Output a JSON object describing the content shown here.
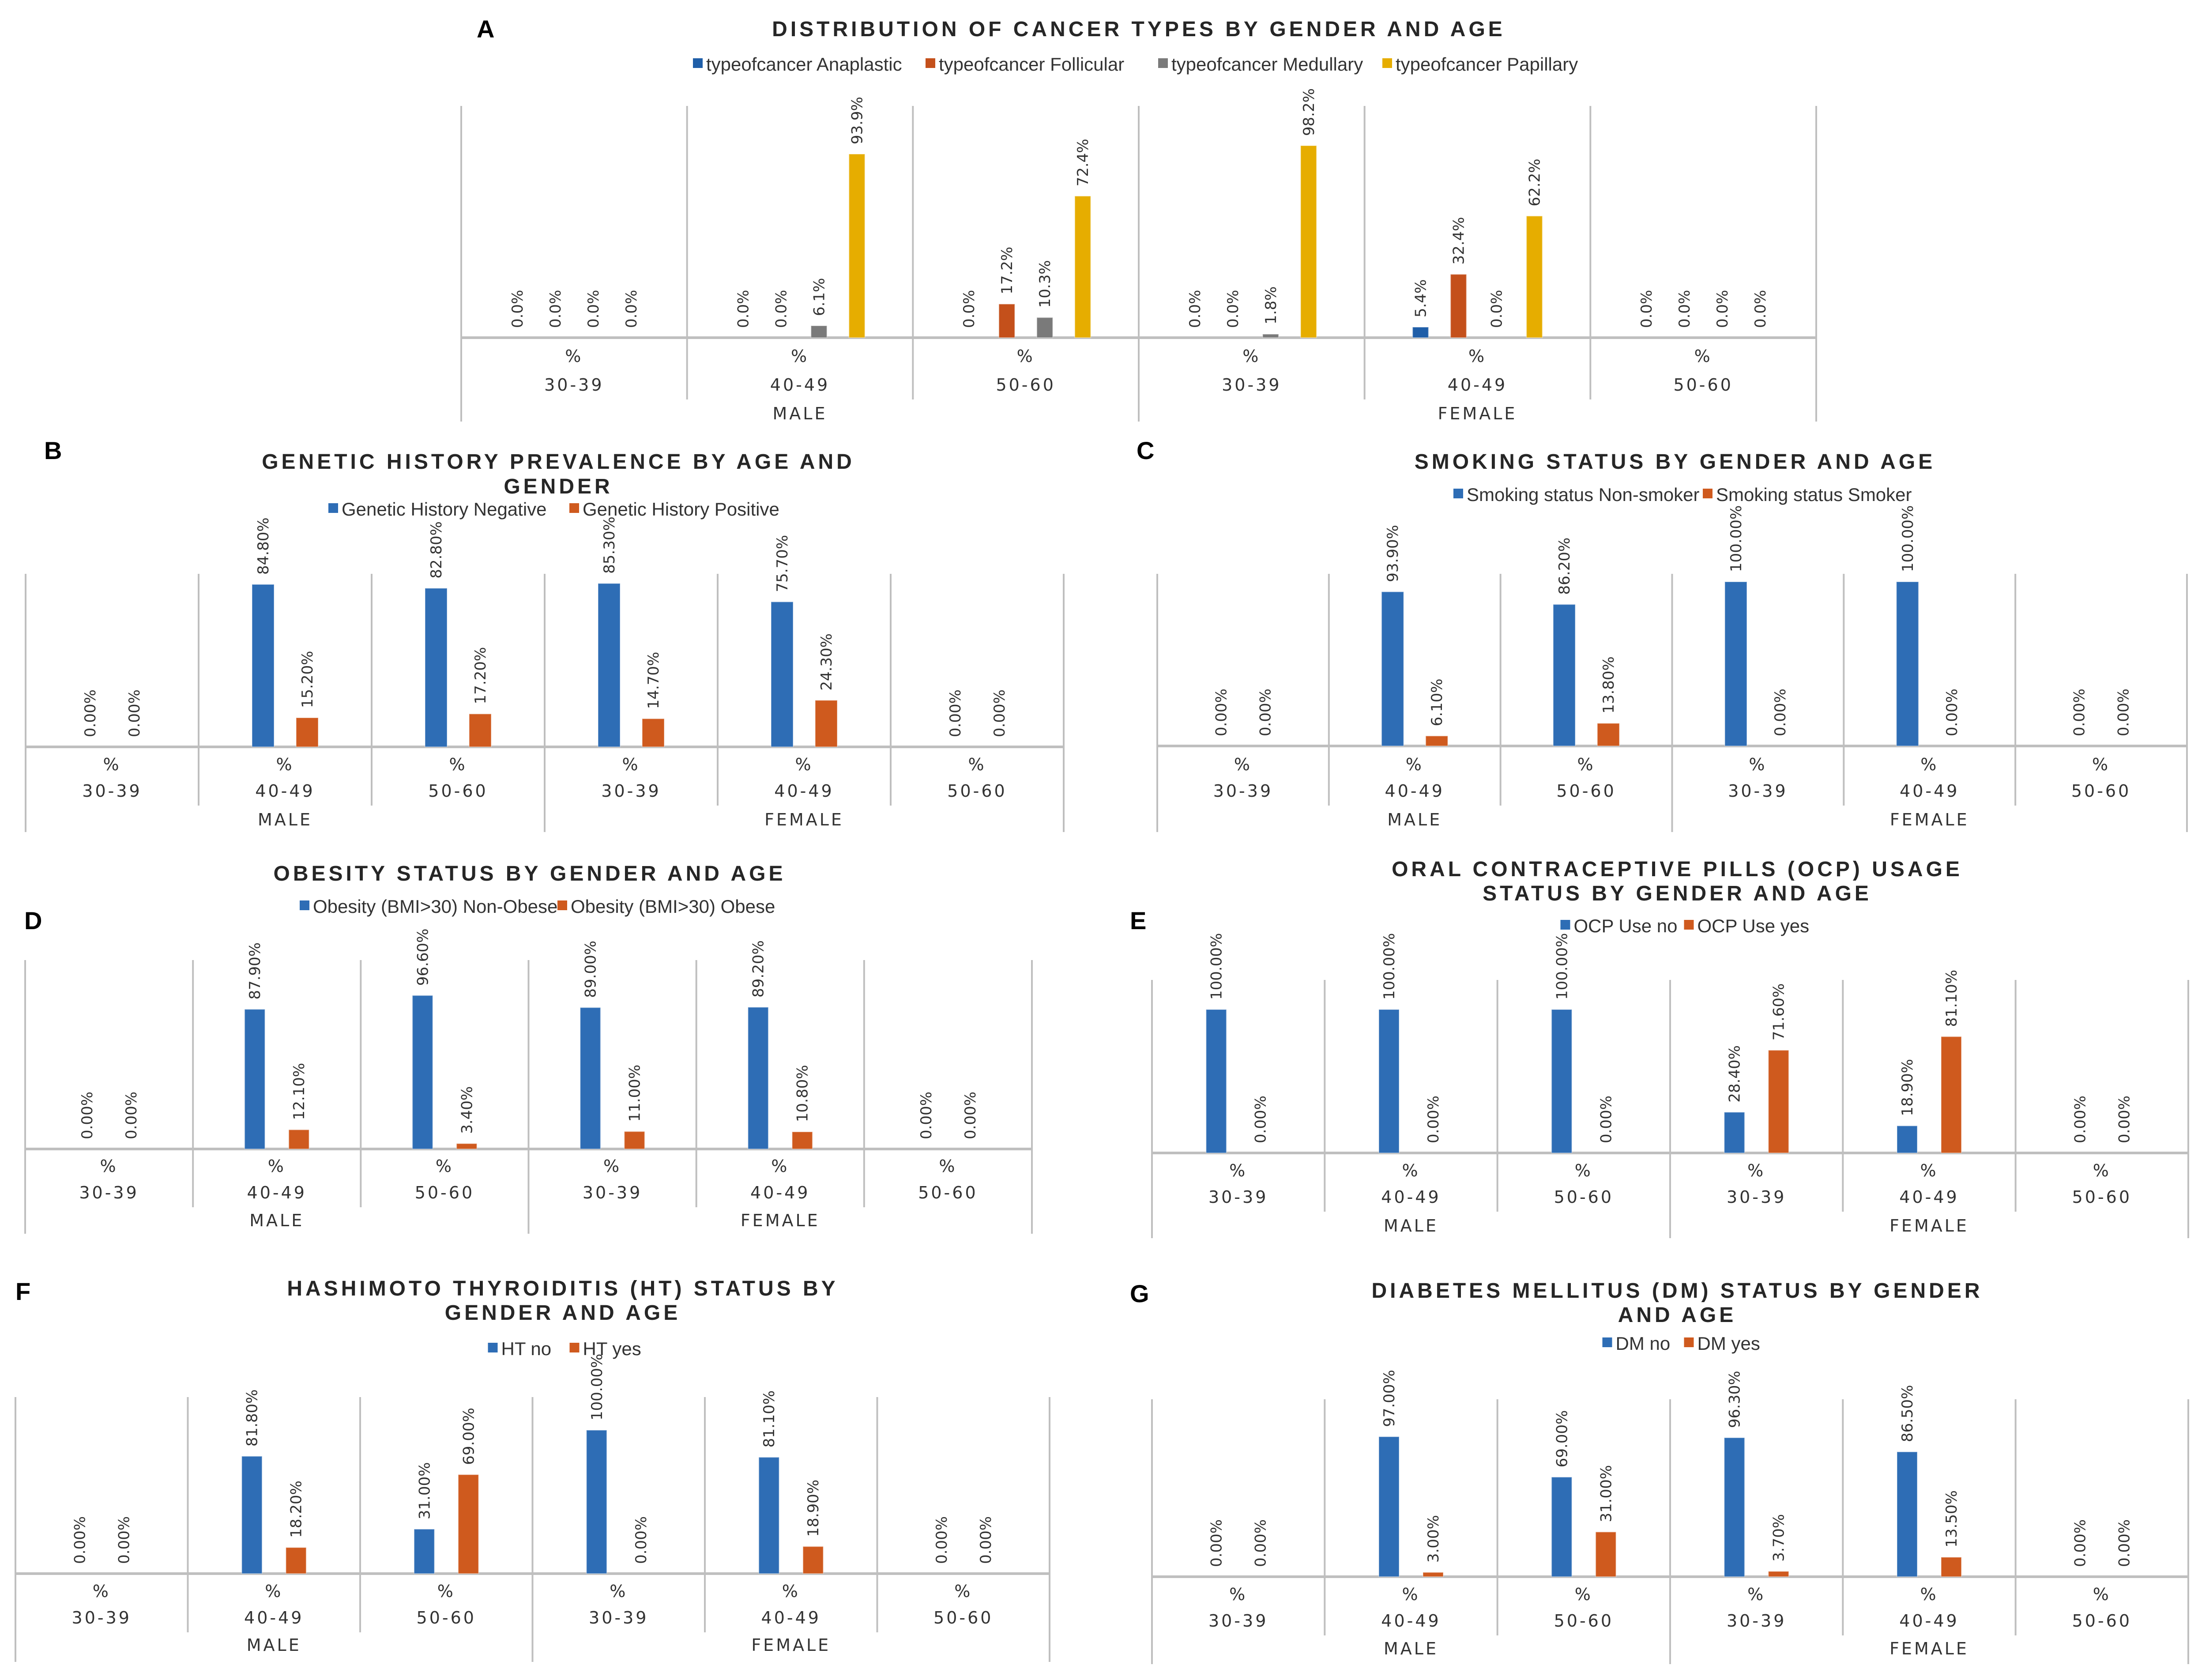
{
  "chart_data": [
    {
      "panel": "A",
      "type": "bar",
      "title": [
        "DISTRIBUTION OF CANCER TYPES BY GENDER AND AGE"
      ],
      "measure_label": "%",
      "groups": [
        {
          "label": "MALE",
          "categories": [
            "30-39",
            "40-49",
            "50-60"
          ]
        },
        {
          "label": "FEMALE",
          "categories": [
            "30-39",
            "40-49",
            "50-60"
          ]
        }
      ],
      "label_decimals": 1,
      "ylim": [
        0,
        100
      ],
      "series": [
        {
          "name": "typeofcancer Anaplastic",
          "color": "#1f5ea8",
          "values": [
            0,
            0,
            0,
            0,
            5.4,
            0
          ]
        },
        {
          "name": "typeofcancer Follicular",
          "color": "#c4501b",
          "values": [
            0,
            0,
            17.2,
            0,
            32.4,
            0
          ]
        },
        {
          "name": "typeofcancer Medullary",
          "color": "#7a7a7a",
          "values": [
            0,
            6.1,
            10.3,
            1.8,
            0,
            0
          ]
        },
        {
          "name": "typeofcancer Papillary",
          "color": "#e6ad00",
          "values": [
            0,
            93.9,
            72.4,
            98.2,
            62.2,
            0
          ]
        }
      ]
    },
    {
      "panel": "B",
      "type": "bar",
      "title": [
        "GENETIC HISTORY PREVALENCE BY AGE AND",
        "GENDER"
      ],
      "measure_label": "%",
      "groups": [
        {
          "label": "MALE",
          "categories": [
            "30-39",
            "40-49",
            "50-60"
          ]
        },
        {
          "label": "FEMALE",
          "categories": [
            "30-39",
            "40-49",
            "50-60"
          ]
        }
      ],
      "label_decimals": 2,
      "ylim": [
        0,
        100
      ],
      "series": [
        {
          "name": "Genetic History Negative",
          "color": "#2e6db5",
          "values": [
            0,
            84.8,
            82.8,
            85.3,
            75.7,
            0
          ]
        },
        {
          "name": "Genetic History Positive",
          "color": "#cf5a1e",
          "values": [
            0,
            15.2,
            17.2,
            14.7,
            24.3,
            0
          ]
        }
      ]
    },
    {
      "panel": "C",
      "type": "bar",
      "title": [
        "SMOKING STATUS BY GENDER AND AGE"
      ],
      "measure_label": "%",
      "groups": [
        {
          "label": "MALE",
          "categories": [
            "30-39",
            "40-49",
            "50-60"
          ]
        },
        {
          "label": "FEMALE",
          "categories": [
            "30-39",
            "40-49",
            "50-60"
          ]
        }
      ],
      "label_decimals": 2,
      "ylim": [
        0,
        100
      ],
      "series": [
        {
          "name": "Smoking status Non-smoker",
          "color": "#2e6db5",
          "values": [
            0,
            93.9,
            86.2,
            100,
            100,
            0
          ]
        },
        {
          "name": "Smoking status Smoker",
          "color": "#cf5a1e",
          "values": [
            0,
            6.1,
            13.8,
            0,
            0,
            0
          ]
        }
      ]
    },
    {
      "panel": "D",
      "type": "bar",
      "title": [
        "OBESITY STATUS BY GENDER AND AGE"
      ],
      "measure_label": "%",
      "groups": [
        {
          "label": "MALE",
          "categories": [
            "30-39",
            "40-49",
            "50-60"
          ]
        },
        {
          "label": "FEMALE",
          "categories": [
            "30-39",
            "40-49",
            "50-60"
          ]
        }
      ],
      "label_decimals": 2,
      "ylim": [
        0,
        100
      ],
      "series": [
        {
          "name": "Obesity (BMI>30) Non-Obese",
          "color": "#2e6db5",
          "values": [
            0,
            87.9,
            96.6,
            89.0,
            89.2,
            0
          ]
        },
        {
          "name": "Obesity (BMI>30) Obese",
          "color": "#cf5a1e",
          "values": [
            0,
            12.1,
            3.4,
            11.0,
            10.8,
            0
          ]
        }
      ]
    },
    {
      "panel": "E",
      "type": "bar",
      "title": [
        "ORAL CONTRACEPTIVE PILLS (OCP) USAGE",
        "STATUS BY GENDER AND AGE"
      ],
      "measure_label": "%",
      "groups": [
        {
          "label": "MALE",
          "categories": [
            "30-39",
            "40-49",
            "50-60"
          ]
        },
        {
          "label": "FEMALE",
          "categories": [
            "30-39",
            "40-49",
            "50-60"
          ]
        }
      ],
      "label_decimals": 2,
      "ylim": [
        0,
        100
      ],
      "series": [
        {
          "name": "OCP Use no",
          "color": "#2e6db5",
          "values": [
            100,
            100,
            100,
            28.4,
            18.9,
            0
          ]
        },
        {
          "name": "OCP Use yes",
          "color": "#cf5a1e",
          "values": [
            0,
            0,
            0,
            71.6,
            81.1,
            0
          ]
        }
      ]
    },
    {
      "panel": "F",
      "type": "bar",
      "title": [
        "HASHIMOTO THYROIDITIS (HT) STATUS BY",
        "GENDER AND AGE"
      ],
      "measure_label": "%",
      "groups": [
        {
          "label": "MALE",
          "categories": [
            "30-39",
            "40-49",
            "50-60"
          ]
        },
        {
          "label": "FEMALE",
          "categories": [
            "30-39",
            "40-49",
            "50-60"
          ]
        }
      ],
      "label_decimals": 2,
      "ylim": [
        0,
        100
      ],
      "series": [
        {
          "name": "HT no",
          "color": "#2e6db5",
          "values": [
            0,
            81.8,
            31.0,
            100,
            81.1,
            0
          ]
        },
        {
          "name": "HT yes",
          "color": "#cf5a1e",
          "values": [
            0,
            18.2,
            69.0,
            0,
            18.9,
            0
          ]
        }
      ]
    },
    {
      "panel": "G",
      "type": "bar",
      "title": [
        "DIABETES MELLITUS (DM) STATUS BY GENDER",
        "AND AGE"
      ],
      "measure_label": "%",
      "groups": [
        {
          "label": "MALE",
          "categories": [
            "30-39",
            "40-49",
            "50-60"
          ]
        },
        {
          "label": "FEMALE",
          "categories": [
            "30-39",
            "40-49",
            "50-60"
          ]
        }
      ],
      "label_decimals": 2,
      "ylim": [
        0,
        100
      ],
      "series": [
        {
          "name": "DM no",
          "color": "#2e6db5",
          "values": [
            0,
            97.0,
            69.0,
            96.3,
            86.5,
            0
          ]
        },
        {
          "name": "DM yes",
          "color": "#cf5a1e",
          "values": [
            0,
            3.0,
            31.0,
            3.7,
            13.5,
            0
          ]
        }
      ]
    }
  ]
}
